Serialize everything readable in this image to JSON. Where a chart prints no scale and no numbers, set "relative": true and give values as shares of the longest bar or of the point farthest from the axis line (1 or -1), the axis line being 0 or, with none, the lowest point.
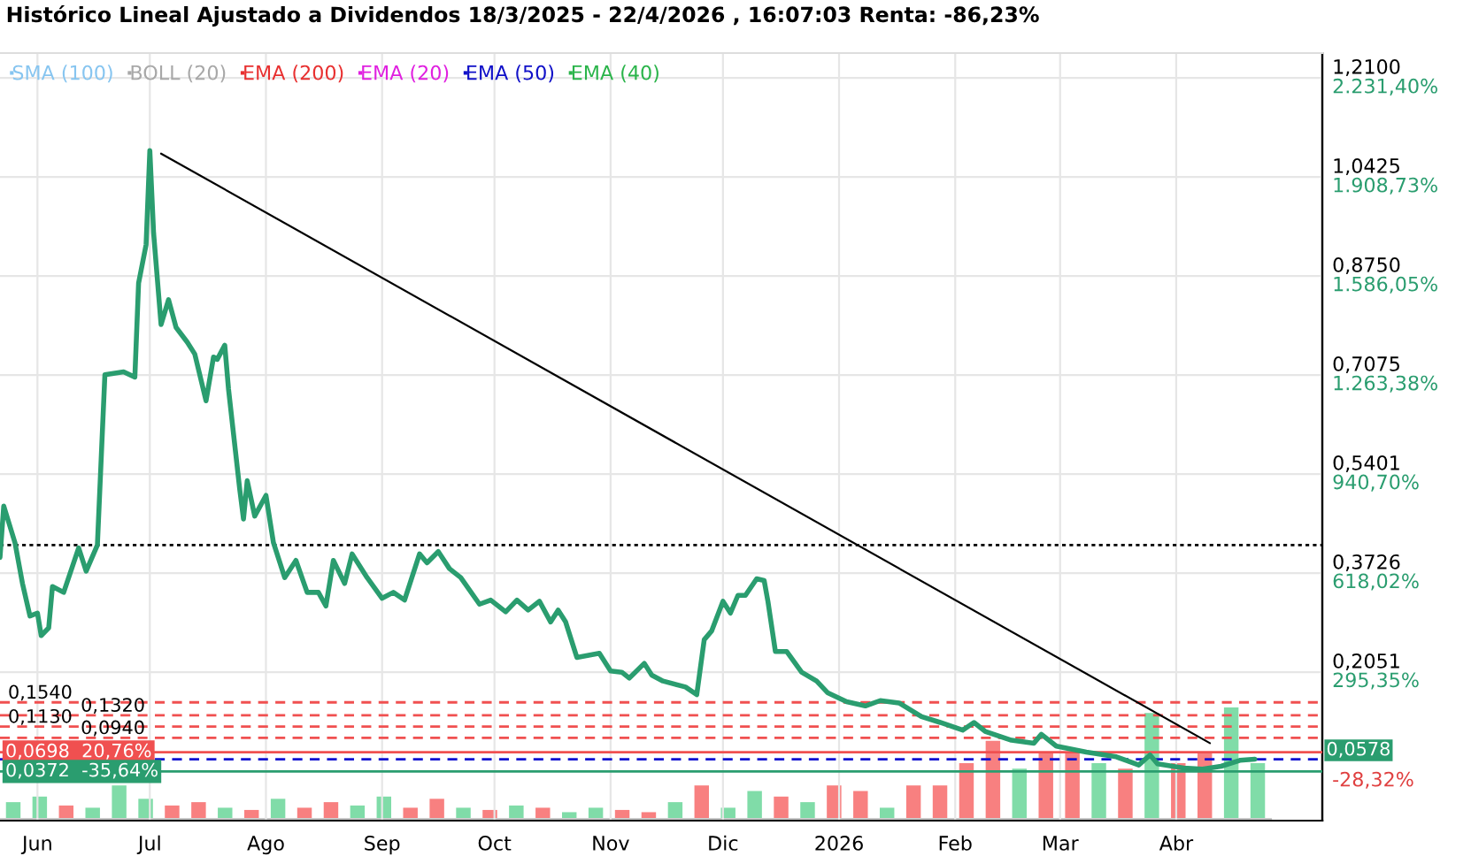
{
  "chart_data": [
    {
      "type": "line",
      "title": "Histórico Lineal Ajustado a Dividendos 18/3/2025 - 22/4/2026 , 16:07:03 Renta: -86,23%",
      "series": [
        {
          "color": "#2a9d6f",
          "x": [
            "2025-05-22",
            "2025-05-23",
            "2025-05-26",
            "2025-05-28",
            "2025-05-30",
            "2025-06-01",
            "2025-06-02",
            "2025-06-04",
            "2025-06-05",
            "2025-06-08",
            "2025-06-12",
            "2025-06-14",
            "2025-06-17",
            "2025-06-19",
            "2025-06-24",
            "2025-06-27",
            "2025-06-28",
            "2025-06-30",
            "2025-07-01",
            "2025-07-02",
            "2025-07-04",
            "2025-07-06",
            "2025-07-08",
            "2025-07-11",
            "2025-07-13",
            "2025-07-16",
            "2025-07-18",
            "2025-07-19",
            "2025-07-21",
            "2025-07-22",
            "2025-07-25",
            "2025-07-26",
            "2025-07-27",
            "2025-07-29",
            "2025-08-01",
            "2025-08-03",
            "2025-08-06",
            "2025-08-09",
            "2025-08-12",
            "2025-08-15",
            "2025-08-17",
            "2025-08-19",
            "2025-08-22",
            "2025-08-24",
            "2025-08-28",
            "2025-09-01",
            "2025-09-04",
            "2025-09-07",
            "2025-09-11",
            "2025-09-13",
            "2025-09-16",
            "2025-09-19",
            "2025-09-22",
            "2025-09-27",
            "2025-09-30",
            "2025-10-04",
            "2025-10-07",
            "2025-10-10",
            "2025-10-13",
            "2025-10-16",
            "2025-10-18",
            "2025-10-20",
            "2025-10-23",
            "2025-10-29",
            "2025-11-01",
            "2025-11-04",
            "2025-11-06",
            "2025-11-10",
            "2025-11-12",
            "2025-11-15",
            "2025-11-21",
            "2025-11-24",
            "2025-11-26",
            "2025-11-28",
            "2025-12-01",
            "2025-12-03",
            "2025-12-05",
            "2025-12-07",
            "2025-12-10",
            "2025-12-12",
            "2025-12-13",
            "2025-12-15",
            "2025-12-18",
            "2025-12-22",
            "2025-12-26",
            "2025-12-29",
            "2026-01-03",
            "2026-01-08",
            "2026-01-12",
            "2026-01-17",
            "2026-01-23",
            "2026-01-28",
            "2026-02-03",
            "2026-02-06",
            "2026-02-09",
            "2026-02-16",
            "2026-02-22",
            "2026-02-24",
            "2026-02-28",
            "2026-03-08",
            "2026-03-16",
            "2026-03-22",
            "2026-03-25",
            "2026-03-27",
            "2026-04-03",
            "2026-04-08",
            "2026-04-13",
            "2026-04-18",
            "2026-04-22"
          ],
          "values": [
            0.399,
            0.486,
            0.424,
            0.355,
            0.3,
            0.305,
            0.267,
            0.28,
            0.35,
            0.34,
            0.415,
            0.376,
            0.42,
            0.708,
            0.713,
            0.704,
            0.863,
            0.928,
            1.087,
            0.948,
            0.793,
            0.835,
            0.788,
            0.763,
            0.743,
            0.664,
            0.738,
            0.734,
            0.758,
            0.684,
            0.514,
            0.464,
            0.529,
            0.469,
            0.504,
            0.424,
            0.365,
            0.394,
            0.34,
            0.34,
            0.317,
            0.394,
            0.355,
            0.405,
            0.365,
            0.33,
            0.34,
            0.327,
            0.405,
            0.39,
            0.409,
            0.38,
            0.365,
            0.32,
            0.327,
            0.307,
            0.327,
            0.31,
            0.325,
            0.29,
            0.31,
            0.29,
            0.23,
            0.237,
            0.207,
            0.205,
            0.195,
            0.22,
            0.2,
            0.19,
            0.18,
            0.167,
            0.26,
            0.275,
            0.325,
            0.305,
            0.335,
            0.335,
            0.363,
            0.36,
            0.325,
            0.24,
            0.24,
            0.205,
            0.19,
            0.17,
            0.155,
            0.148,
            0.157,
            0.153,
            0.13,
            0.12,
            0.107,
            0.12,
            0.105,
            0.09,
            0.085,
            0.1,
            0.08,
            0.07,
            0.062,
            0.048,
            0.065,
            0.05,
            0.043,
            0.041,
            0.046,
            0.056,
            0.0578
          ]
        },
        {
          "color": "#000000",
          "x": [
            "2025-07-04",
            "2026-04-10"
          ],
          "values": [
            1.082,
            0.085
          ]
        },
        {
          "name": "SMA (100)",
          "color": "#87c5f0"
        },
        {
          "name": "BOLL (20)",
          "color": "#a8a8a8"
        },
        {
          "name": "EMA (200)",
          "color": "#e83030"
        },
        {
          "name": "EMA (20)",
          "color": "#e020e0"
        },
        {
          "name": "EMA (50)",
          "color": "#1010c8"
        },
        {
          "name": "EMA (40)",
          "color": "#2ab44a"
        }
      ],
      "xlim": [
        "2025-05-22",
        "2026-05-10"
      ],
      "xticks": [
        {
          "value": "2025-06-01",
          "label": "Jun"
        },
        {
          "value": "2025-07-01",
          "label": "Jul"
        },
        {
          "value": "2025-08-01",
          "label": "Ago"
        },
        {
          "value": "2025-09-01",
          "label": "Sep"
        },
        {
          "value": "2025-10-01",
          "label": "Oct"
        },
        {
          "value": "2025-11-01",
          "label": "Nov"
        },
        {
          "value": "2025-12-01",
          "label": "Dic"
        },
        {
          "value": "2026-01-01",
          "label": "2026"
        },
        {
          "value": "2026-02-01",
          "label": "Feb"
        },
        {
          "value": "2026-03-01",
          "label": "Mar"
        },
        {
          "value": "2026-04-01",
          "label": "Abr"
        }
      ],
      "ylim": [
        -0.046,
        1.252
      ],
      "yticks": [
        {
          "value": 1.21,
          "label": "1,2100"
        },
        {
          "value": 1.0425,
          "label": "1,0425"
        },
        {
          "value": 0.875,
          "label": "0,8750"
        },
        {
          "value": 0.7075,
          "label": "0,7075"
        },
        {
          "value": 0.5401,
          "label": "0,5401"
        },
        {
          "value": 0.3726,
          "label": "0,3726"
        },
        {
          "value": 0.2051,
          "label": "0,2051"
        }
      ],
      "y2lim": [
        -188.7,
        2313.3
      ],
      "y2ticks": [
        {
          "value": 2231.4,
          "label": "2.231,40%"
        },
        {
          "value": 1908.73,
          "label": "1.908,73%"
        },
        {
          "value": 1586.05,
          "label": "1.586,05%"
        },
        {
          "value": 1263.38,
          "label": "1.263,38%"
        },
        {
          "value": 940.7,
          "label": "940,70%"
        },
        {
          "value": 618.02,
          "label": "618,02%"
        },
        {
          "value": 295.35,
          "label": "295,35%"
        },
        {
          "value": -28.32,
          "label": "-28,32%"
        }
      ],
      "grid": true,
      "legend": "top left",
      "ref_lines": [
        {
          "axis": "y",
          "value": 0.42,
          "color": "#000000",
          "line_style": "dotted"
        },
        {
          "axis": "y",
          "value": 0.154,
          "label": "0,1540",
          "color": "#f05050",
          "line_style": "dashed"
        },
        {
          "axis": "y",
          "value": 0.132,
          "label": "0,1320",
          "color": "#f05050",
          "line_style": "dashed"
        },
        {
          "axis": "y",
          "value": 0.113,
          "label": "0,1130",
          "color": "#f05050",
          "line_style": "dashed"
        },
        {
          "axis": "y",
          "value": 0.094,
          "label": "0,0940",
          "color": "#f05050",
          "line_style": "dashed"
        },
        {
          "axis": "y",
          "value": 0.0698,
          "label": "0,0698  20,76%",
          "color": "#f05050",
          "line_style": "solid"
        },
        {
          "axis": "y",
          "value": 0.0578,
          "label": "0,0578",
          "color": "#1010d0",
          "line_style": "dashed"
        },
        {
          "axis": "y",
          "value": 0.0372,
          "label": "0,0372  -35,64%",
          "color": "#2a9d6f",
          "line_style": "solid"
        }
      ]
    },
    {
      "type": "bar",
      "relative": true,
      "categories": [
        null,
        null,
        null,
        null,
        null,
        null,
        null,
        null,
        null,
        null,
        null,
        null,
        null,
        null,
        null,
        null,
        null,
        null,
        null,
        null,
        null,
        null,
        null,
        null,
        null,
        null,
        null,
        null,
        null,
        null,
        null,
        null,
        null,
        null,
        null,
        null,
        null,
        null,
        null,
        null,
        null,
        null,
        null,
        null,
        null,
        null,
        null,
        null
      ],
      "values": [
        0.15,
        0.2,
        0.12,
        0.1,
        0.3,
        0.18,
        0.12,
        0.15,
        0.1,
        0.08,
        0.18,
        0.1,
        0.15,
        0.12,
        0.2,
        0.1,
        0.18,
        0.1,
        0.08,
        0.12,
        0.1,
        0.06,
        0.1,
        0.08,
        0.06,
        0.15,
        0.3,
        0.1,
        0.25,
        0.2,
        0.15,
        0.3,
        0.25,
        0.1,
        0.3,
        0.3,
        0.5,
        0.7,
        0.45,
        0.6,
        0.6,
        0.5,
        0.45,
        0.95,
        0.5,
        0.6,
        1.0,
        0.5
      ],
      "colors": [
        "#80dca8",
        "#80dca8",
        "#f88080",
        "#80dca8",
        "#80dca8",
        "#80dca8",
        "#f88080",
        "#f88080",
        "#80dca8",
        "#f88080",
        "#80dca8",
        "#f88080",
        "#f88080",
        "#80dca8",
        "#80dca8",
        "#f88080",
        "#f88080",
        "#80dca8",
        "#f88080",
        "#80dca8",
        "#f88080",
        "#80dca8",
        "#80dca8",
        "#f88080",
        "#f88080",
        "#80dca8",
        "#f88080",
        "#80dca8",
        "#80dca8",
        "#f88080",
        "#80dca8",
        "#f88080",
        "#f88080",
        "#80dca8",
        "#f88080",
        "#f88080",
        "#f88080",
        "#f88080",
        "#80dca8",
        "#f88080",
        "#f88080",
        "#80dca8",
        "#f88080",
        "#80dca8",
        "#f88080",
        "#f88080",
        "#80dca8",
        "#80dca8"
      ]
    }
  ]
}
